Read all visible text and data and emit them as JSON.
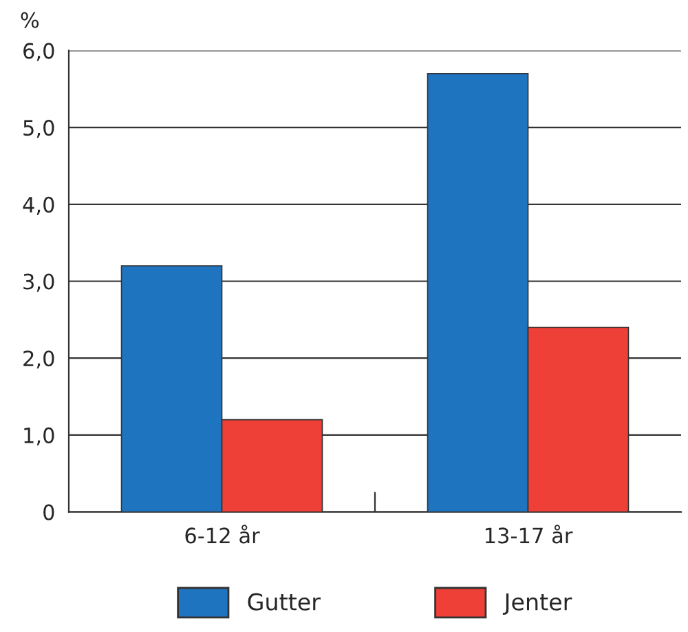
{
  "chart_data": {
    "type": "bar",
    "ylabel": "%",
    "categories": [
      "6-12 år",
      "13-17 år"
    ],
    "series": [
      {
        "name": "Gutter",
        "color": "#1f74c0",
        "values": [
          3.2,
          5.7
        ]
      },
      {
        "name": "Jenter",
        "color": "#ee4037",
        "values": [
          1.2,
          2.4
        ]
      }
    ],
    "ylim": [
      0,
      6
    ],
    "yticks": [
      {
        "value": 0,
        "label": "0"
      },
      {
        "value": 1,
        "label": "1,0"
      },
      {
        "value": 2,
        "label": "2,0"
      },
      {
        "value": 3,
        "label": "3,0"
      },
      {
        "value": 4,
        "label": "4,0"
      },
      {
        "value": 5,
        "label": "5,0"
      },
      {
        "value": 6,
        "label": "6,0"
      }
    ],
    "grid": "y",
    "legend": "bottom"
  }
}
